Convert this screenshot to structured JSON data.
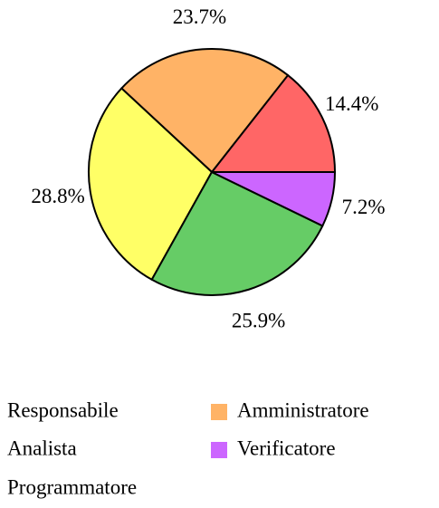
{
  "chart_data": {
    "type": "pie",
    "categories": [
      "Responsabile",
      "Amministratore",
      "Analista",
      "Programmatore",
      "Verificatore"
    ],
    "values": [
      14.4,
      23.7,
      28.8,
      25.9,
      7.2
    ],
    "value_labels": [
      "14.4%",
      "23.7%",
      "28.8%",
      "25.9%",
      "7.2%"
    ],
    "colors": [
      "#ff6666",
      "#ffb366",
      "#ffff66",
      "#66cc66",
      "#cc66ff"
    ]
  }
}
